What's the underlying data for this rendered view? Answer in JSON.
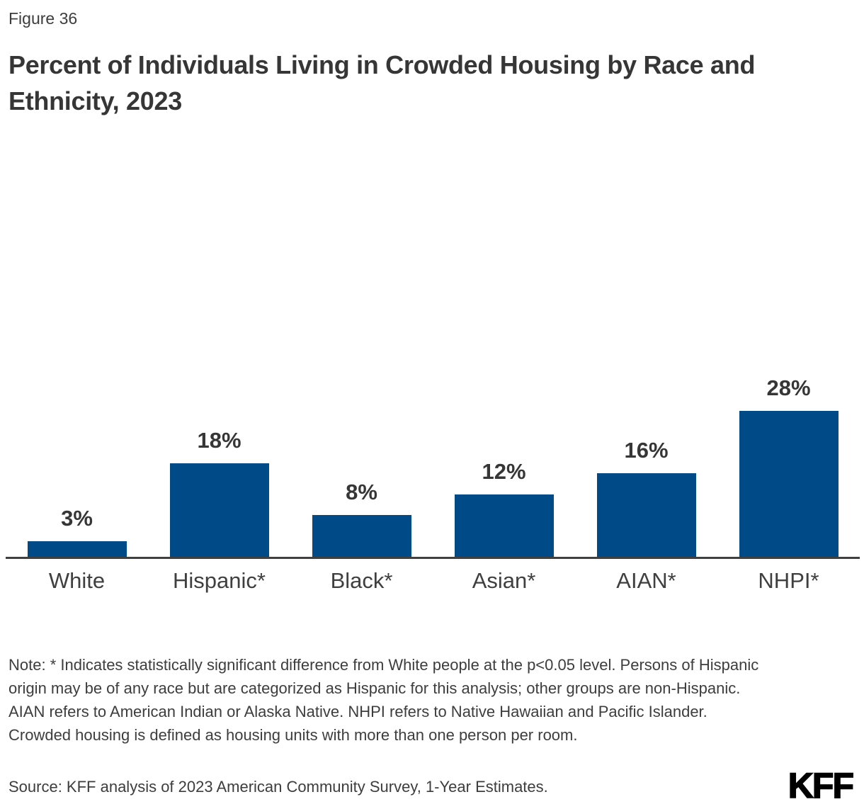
{
  "figure_label": "Figure 36",
  "title": "Percent of Individuals Living in Crowded Housing by Race and Ethnicity, 2023",
  "chart_data": {
    "type": "bar",
    "title": "Percent of Individuals Living in Crowded Housing by Race and Ethnicity, 2023",
    "categories": [
      "White",
      "Hispanic*",
      "Black*",
      "Asian*",
      "AIAN*",
      "NHPI*"
    ],
    "values": [
      3,
      18,
      8,
      12,
      16,
      28
    ],
    "value_labels": [
      "3%",
      "18%",
      "8%",
      "12%",
      "16%",
      "28%"
    ],
    "unit": "%",
    "xlabel": "",
    "ylabel": "",
    "grid": false,
    "legend": false,
    "bar_color": "#004a87",
    "axis_line_color": "#404040"
  },
  "note": "Note: * Indicates statistically significant difference from White people at the p<0.05 level. Persons of Hispanic origin may be of any race but are categorized as Hispanic for this analysis; other groups are non-Hispanic. AIAN refers to American Indian or Alaska Native. NHPI refers to Native Hawaiian and Pacific Islander. Crowded housing is defined as housing units with more than one person per room.",
  "source": "Source: KFF analysis of 2023 American Community Survey, 1-Year Estimates.",
  "logo_text": "KFF",
  "colors": {
    "bar": "#004a87",
    "axis": "#404040",
    "title_text": "#363636",
    "body_text": "#3d3d3d"
  }
}
